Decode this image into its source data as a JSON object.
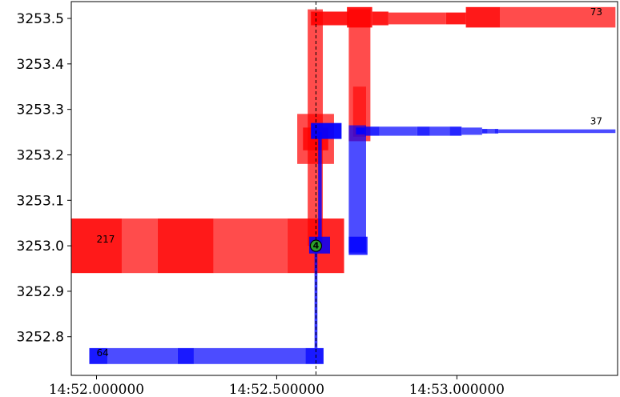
{
  "chart_data": {
    "type": "bar",
    "title": "",
    "xlabel": "",
    "ylabel": "",
    "xlim": [
      -0.07,
      1.446
    ],
    "ylim": [
      3252.715,
      3253.537
    ],
    "grid": false,
    "x_ticks": [
      {
        "value": 0.0,
        "label": "14:52.000000"
      },
      {
        "value": 0.5,
        "label": "14:52.500000"
      },
      {
        "value": 1.0,
        "label": "14:53.000000"
      }
    ],
    "y_ticks": [
      {
        "value": 3252.8,
        "label": "3252.8"
      },
      {
        "value": 3252.9,
        "label": "3252.9"
      },
      {
        "value": 3253.0,
        "label": "3253.0"
      },
      {
        "value": 3253.1,
        "label": "3253.1"
      },
      {
        "value": 3253.2,
        "label": "3253.2"
      },
      {
        "value": 3253.3,
        "label": "3253.3"
      },
      {
        "value": 3253.4,
        "label": "3253.4"
      },
      {
        "value": 3253.5,
        "label": "3253.5"
      }
    ],
    "reference_line": {
      "x": 0.609,
      "style": "dashed",
      "color": "#000000"
    },
    "colors": {
      "sell": "#ff0000",
      "buy": "#0000ff",
      "marker": "#2ca02c"
    },
    "segments": [
      {
        "side": "sell",
        "x0": -0.07,
        "x1": 0.07,
        "y0": 3252.94,
        "y1": 3253.06,
        "opacity": 0.9
      },
      {
        "side": "sell",
        "x0": 0.07,
        "x1": 0.17,
        "y0": 3252.94,
        "y1": 3253.06,
        "opacity": 0.7
      },
      {
        "side": "sell",
        "x0": 0.17,
        "x1": 0.325,
        "y0": 3252.94,
        "y1": 3253.06,
        "opacity": 0.9
      },
      {
        "side": "sell",
        "x0": 0.325,
        "x1": 0.53,
        "y0": 3252.94,
        "y1": 3253.06,
        "opacity": 0.7
      },
      {
        "side": "sell",
        "x0": 0.53,
        "x1": 0.687,
        "y0": 3252.94,
        "y1": 3253.06,
        "opacity": 0.85
      },
      {
        "side": "sell",
        "x0": 0.557,
        "x1": 0.659,
        "y0": 3253.18,
        "y1": 3253.29,
        "opacity": 0.7
      },
      {
        "side": "sell",
        "x0": 0.573,
        "x1": 0.643,
        "y0": 3253.21,
        "y1": 3253.26,
        "opacity": 0.8
      },
      {
        "side": "sell",
        "x0": 0.586,
        "x1": 0.628,
        "y0": 3253.0,
        "y1": 3253.52,
        "opacity": 0.7
      },
      {
        "side": "sell",
        "x0": 0.7,
        "x1": 0.76,
        "y0": 3253.23,
        "y1": 3253.52,
        "opacity": 0.7
      },
      {
        "side": "sell",
        "x0": 0.712,
        "x1": 0.748,
        "y0": 3253.24,
        "y1": 3253.35,
        "opacity": 0.6
      },
      {
        "side": "sell",
        "x0": 0.595,
        "x1": 0.7,
        "y0": 3253.485,
        "y1": 3253.515,
        "opacity": 0.9
      },
      {
        "side": "sell",
        "x0": 0.695,
        "x1": 0.765,
        "y0": 3253.48,
        "y1": 3253.525,
        "opacity": 0.9
      },
      {
        "side": "sell",
        "x0": 0.765,
        "x1": 0.81,
        "y0": 3253.485,
        "y1": 3253.515,
        "opacity": 0.9
      },
      {
        "side": "sell",
        "x0": 0.81,
        "x1": 0.97,
        "y0": 3253.487,
        "y1": 3253.513,
        "opacity": 0.75
      },
      {
        "side": "sell",
        "x0": 0.97,
        "x1": 1.025,
        "y0": 3253.487,
        "y1": 3253.513,
        "opacity": 0.9
      },
      {
        "side": "sell",
        "x0": 1.025,
        "x1": 1.12,
        "y0": 3253.48,
        "y1": 3253.525,
        "opacity": 0.9
      },
      {
        "side": "sell",
        "x0": 1.12,
        "x1": 1.44,
        "y0": 3253.48,
        "y1": 3253.525,
        "opacity": 0.7
      },
      {
        "side": "buy",
        "x0": -0.02,
        "x1": 0.03,
        "y0": 3252.74,
        "y1": 3252.775,
        "opacity": 0.9
      },
      {
        "side": "buy",
        "x0": 0.03,
        "x1": 0.225,
        "y0": 3252.74,
        "y1": 3252.775,
        "opacity": 0.7
      },
      {
        "side": "buy",
        "x0": 0.225,
        "x1": 0.27,
        "y0": 3252.74,
        "y1": 3252.775,
        "opacity": 0.9
      },
      {
        "side": "buy",
        "x0": 0.27,
        "x1": 0.58,
        "y0": 3252.74,
        "y1": 3252.775,
        "opacity": 0.7
      },
      {
        "side": "buy",
        "x0": 0.58,
        "x1": 0.63,
        "y0": 3252.74,
        "y1": 3252.775,
        "opacity": 0.9
      },
      {
        "side": "buy",
        "x0": 0.605,
        "x1": 0.613,
        "y0": 3252.775,
        "y1": 3253.0,
        "opacity": 0.8
      },
      {
        "side": "buy",
        "x0": 0.59,
        "x1": 0.648,
        "y0": 3252.983,
        "y1": 3253.02,
        "opacity": 0.85
      },
      {
        "side": "buy",
        "x0": 0.615,
        "x1": 0.625,
        "y0": 3253.0,
        "y1": 3253.25,
        "opacity": 0.8
      },
      {
        "side": "buy",
        "x0": 0.595,
        "x1": 0.68,
        "y0": 3253.235,
        "y1": 3253.27,
        "opacity": 0.95
      },
      {
        "side": "buy",
        "x0": 0.7,
        "x1": 0.748,
        "y0": 3252.985,
        "y1": 3253.265,
        "opacity": 0.7
      },
      {
        "side": "buy",
        "x0": 0.7,
        "x1": 0.752,
        "y0": 3252.98,
        "y1": 3253.02,
        "opacity": 0.85
      },
      {
        "side": "buy",
        "x0": 0.72,
        "x1": 0.745,
        "y0": 3253.245,
        "y1": 3253.26,
        "opacity": 0.9
      },
      {
        "side": "buy",
        "x0": 0.745,
        "x1": 0.785,
        "y0": 3253.242,
        "y1": 3253.262,
        "opacity": 0.85
      },
      {
        "side": "buy",
        "x0": 0.785,
        "x1": 0.89,
        "y0": 3253.242,
        "y1": 3253.262,
        "opacity": 0.7
      },
      {
        "side": "buy",
        "x0": 0.89,
        "x1": 0.925,
        "y0": 3253.242,
        "y1": 3253.262,
        "opacity": 0.85
      },
      {
        "side": "buy",
        "x0": 0.925,
        "x1": 0.98,
        "y0": 3253.242,
        "y1": 3253.262,
        "opacity": 0.7
      },
      {
        "side": "buy",
        "x0": 0.98,
        "x1": 1.013,
        "y0": 3253.242,
        "y1": 3253.262,
        "opacity": 0.85
      },
      {
        "side": "buy",
        "x0": 1.013,
        "x1": 1.07,
        "y0": 3253.244,
        "y1": 3253.26,
        "opacity": 0.7
      },
      {
        "side": "buy",
        "x0": 1.07,
        "x1": 1.085,
        "y0": 3253.247,
        "y1": 3253.257,
        "opacity": 0.85
      },
      {
        "side": "buy",
        "x0": 1.085,
        "x1": 1.105,
        "y0": 3253.247,
        "y1": 3253.257,
        "opacity": 0.7
      },
      {
        "side": "buy",
        "x0": 1.105,
        "x1": 1.115,
        "y0": 3253.247,
        "y1": 3253.257,
        "opacity": 0.85
      },
      {
        "side": "buy",
        "x0": 1.115,
        "x1": 1.44,
        "y0": 3253.248,
        "y1": 3253.256,
        "opacity": 0.7
      }
    ],
    "labels": [
      {
        "text": "217",
        "x": 0.0,
        "y": 3253.0
      },
      {
        "text": "73",
        "x": 1.37,
        "y": 3253.5
      },
      {
        "text": "37",
        "x": 1.37,
        "y": 3253.26
      },
      {
        "text": "64",
        "x": 0.0,
        "y": 3252.75
      }
    ],
    "marker": {
      "text": "4",
      "x": 0.609,
      "y": 3253.0
    }
  }
}
